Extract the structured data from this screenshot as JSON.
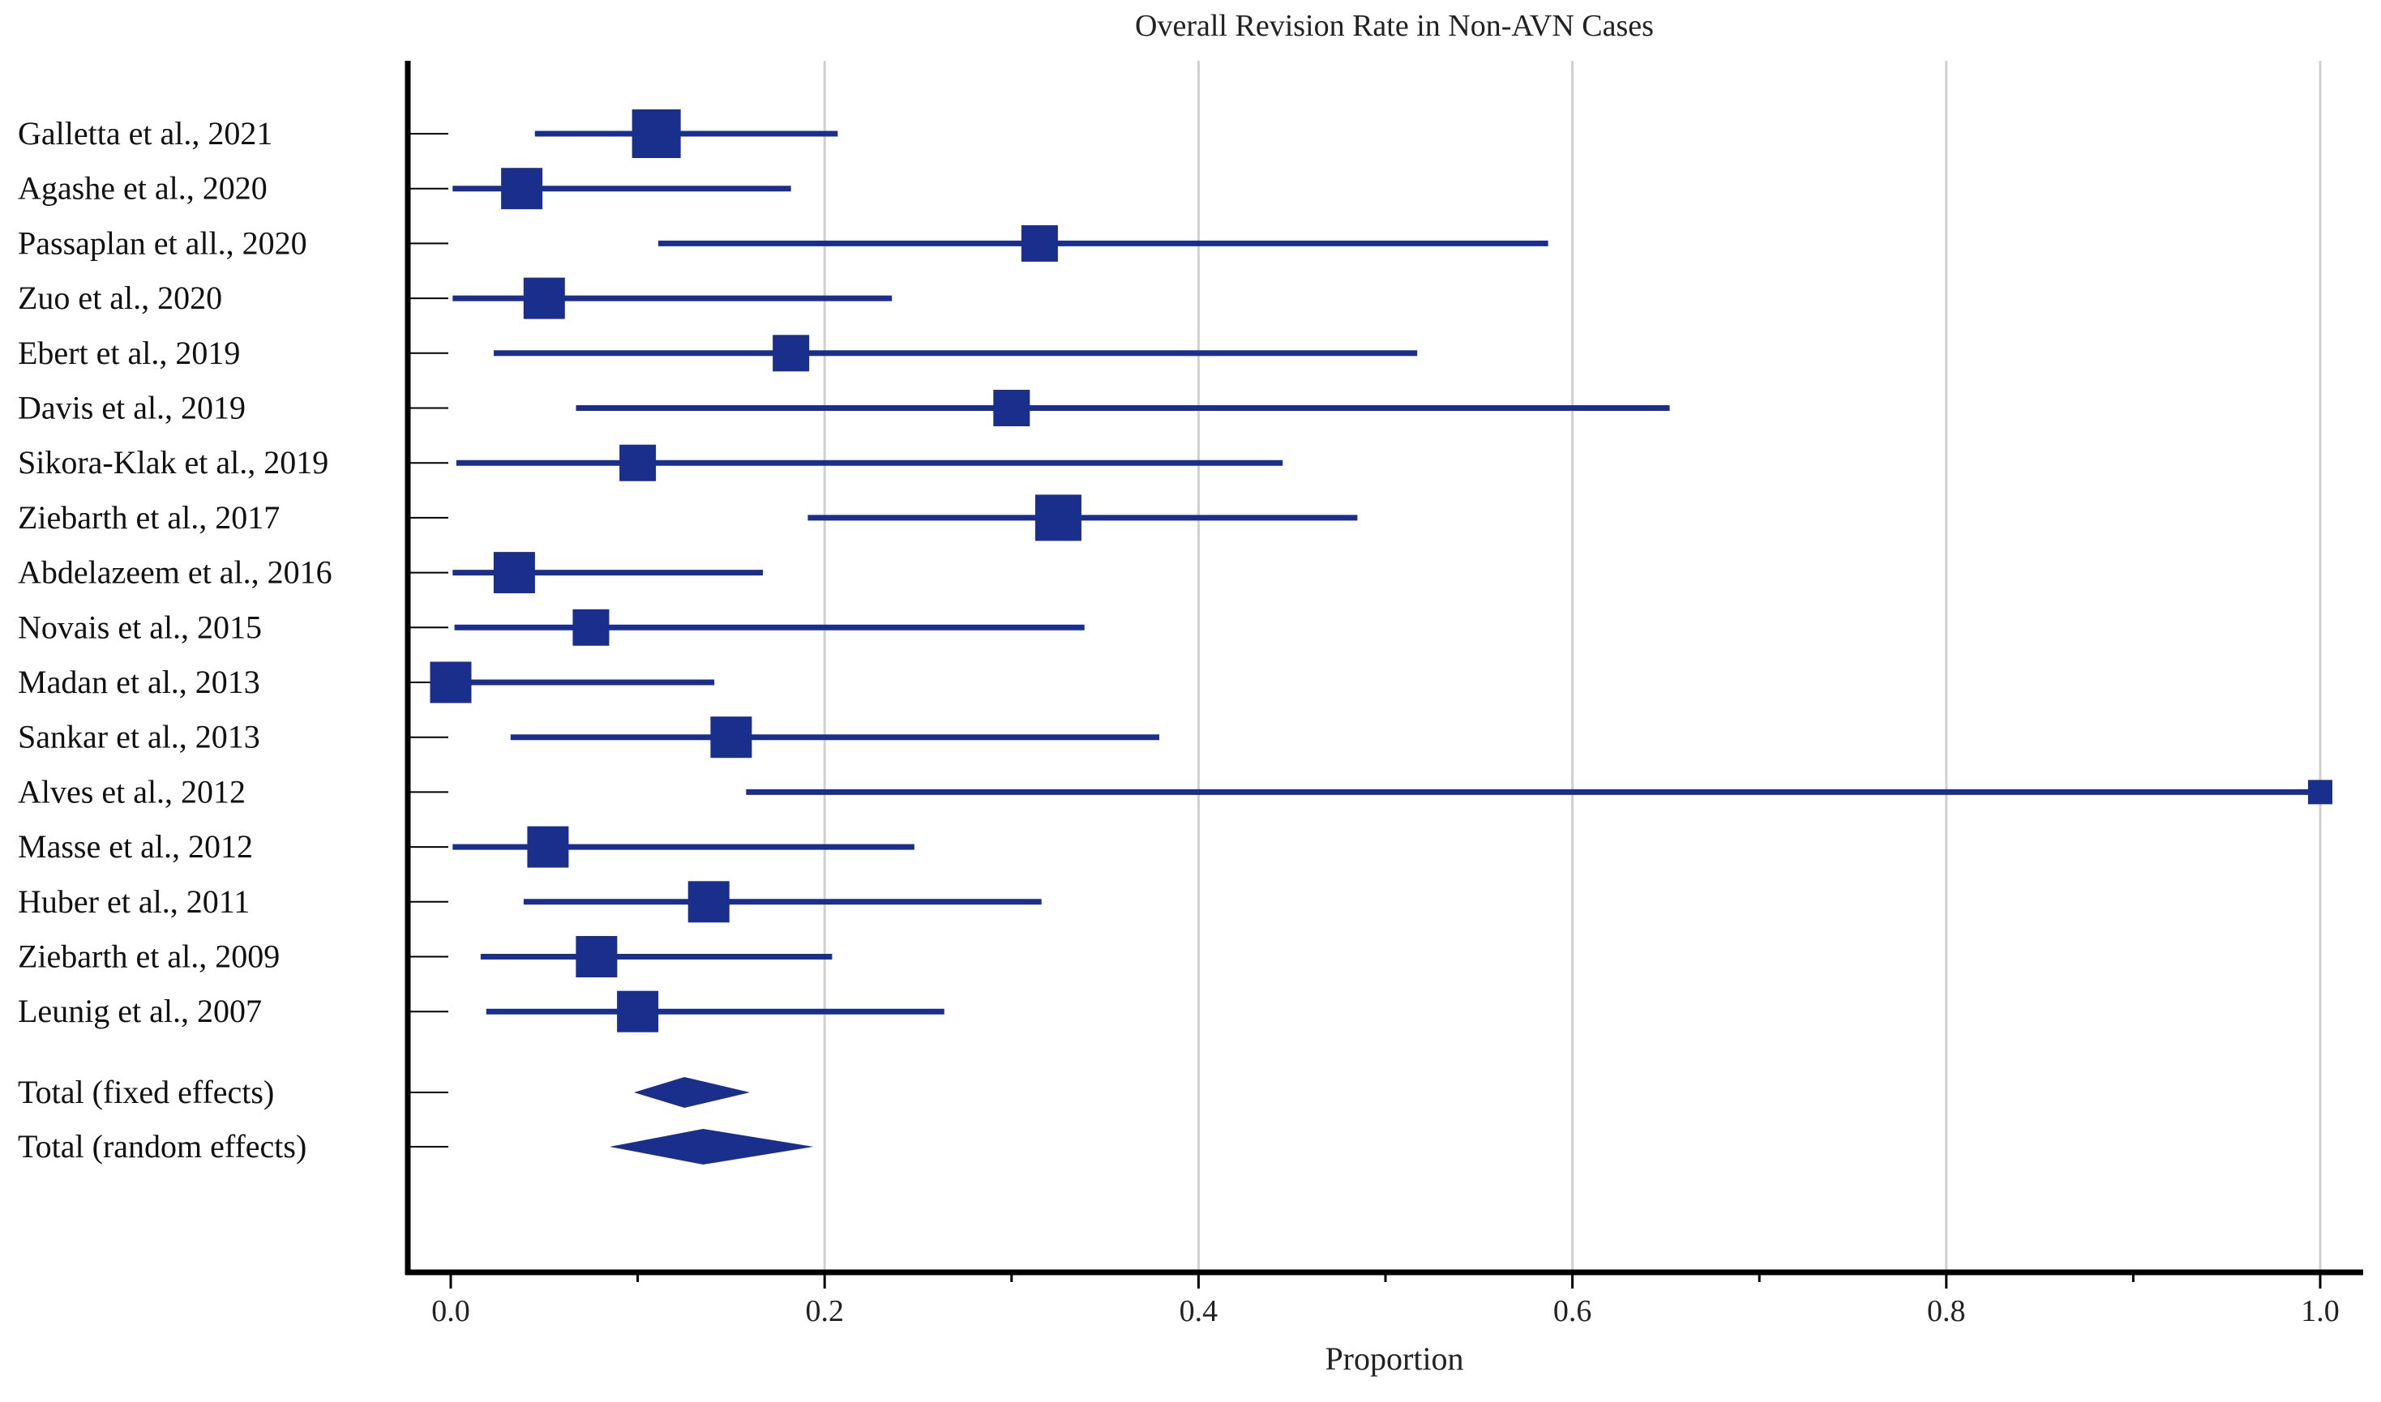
{
  "chart_data": {
    "type": "forest",
    "title": "Overall Revision Rate in Non-AVN Cases",
    "xlabel": "Proportion",
    "xlim": [
      0,
      1
    ],
    "xticks": [
      "0.0",
      "0.2",
      "0.4",
      "0.6",
      "0.8",
      "1.0"
    ],
    "xtick_values": [
      0,
      0.2,
      0.4,
      0.6,
      0.8,
      1.0
    ],
    "grid": "vertical",
    "colors": {
      "marker": "#1a2f8c",
      "axis": "#000000",
      "grid": "#d0d0d0"
    },
    "studies": [
      {
        "label": "Galletta et al., 2021",
        "estimate": 0.11,
        "lower": 0.045,
        "upper": 0.207,
        "weight": 1.0
      },
      {
        "label": "Agashe et al., 2020",
        "estimate": 0.038,
        "lower": 0.001,
        "upper": 0.182,
        "weight": 0.85
      },
      {
        "label": "Passaplan et all., 2020",
        "estimate": 0.315,
        "lower": 0.111,
        "upper": 0.587,
        "weight": 0.75
      },
      {
        "label": "Zuo et al., 2020",
        "estimate": 0.05,
        "lower": 0.001,
        "upper": 0.236,
        "weight": 0.85
      },
      {
        "label": "Ebert et al., 2019",
        "estimate": 0.182,
        "lower": 0.023,
        "upper": 0.517,
        "weight": 0.75
      },
      {
        "label": "Davis et al., 2019",
        "estimate": 0.3,
        "lower": 0.067,
        "upper": 0.652,
        "weight": 0.75
      },
      {
        "label": "Sikora-Klak et al., 2019",
        "estimate": 0.1,
        "lower": 0.003,
        "upper": 0.445,
        "weight": 0.75
      },
      {
        "label": "Ziebarth et al., 2017",
        "estimate": 0.325,
        "lower": 0.191,
        "upper": 0.485,
        "weight": 0.95
      },
      {
        "label": "Abdelazeem et al., 2016",
        "estimate": 0.034,
        "lower": 0.001,
        "upper": 0.167,
        "weight": 0.85
      },
      {
        "label": "Novais et al., 2015",
        "estimate": 0.075,
        "lower": 0.002,
        "upper": 0.339,
        "weight": 0.75
      },
      {
        "label": "Madan et al., 2013",
        "estimate": 0.0,
        "lower": 0.0,
        "upper": 0.141,
        "weight": 0.85
      },
      {
        "label": "Sankar et al., 2013",
        "estimate": 0.15,
        "lower": 0.032,
        "upper": 0.379,
        "weight": 0.85
      },
      {
        "label": "Alves et al., 2012",
        "estimate": 1.0,
        "lower": 0.158,
        "upper": 1.0,
        "weight": 0.5
      },
      {
        "label": "Masse et al., 2012",
        "estimate": 0.052,
        "lower": 0.001,
        "upper": 0.248,
        "weight": 0.85
      },
      {
        "label": "Huber et al., 2011",
        "estimate": 0.138,
        "lower": 0.039,
        "upper": 0.316,
        "weight": 0.85
      },
      {
        "label": "Ziebarth et al., 2009",
        "estimate": 0.078,
        "lower": 0.016,
        "upper": 0.204,
        "weight": 0.85
      },
      {
        "label": "Leunig et al., 2007",
        "estimate": 0.1,
        "lower": 0.019,
        "upper": 0.264,
        "weight": 0.85
      }
    ],
    "pooled": [
      {
        "label": "Total (fixed effects)",
        "estimate": 0.125,
        "lower": 0.098,
        "upper": 0.16
      },
      {
        "label": "Total (random effects)",
        "estimate": 0.135,
        "lower": 0.085,
        "upper": 0.194
      }
    ]
  }
}
